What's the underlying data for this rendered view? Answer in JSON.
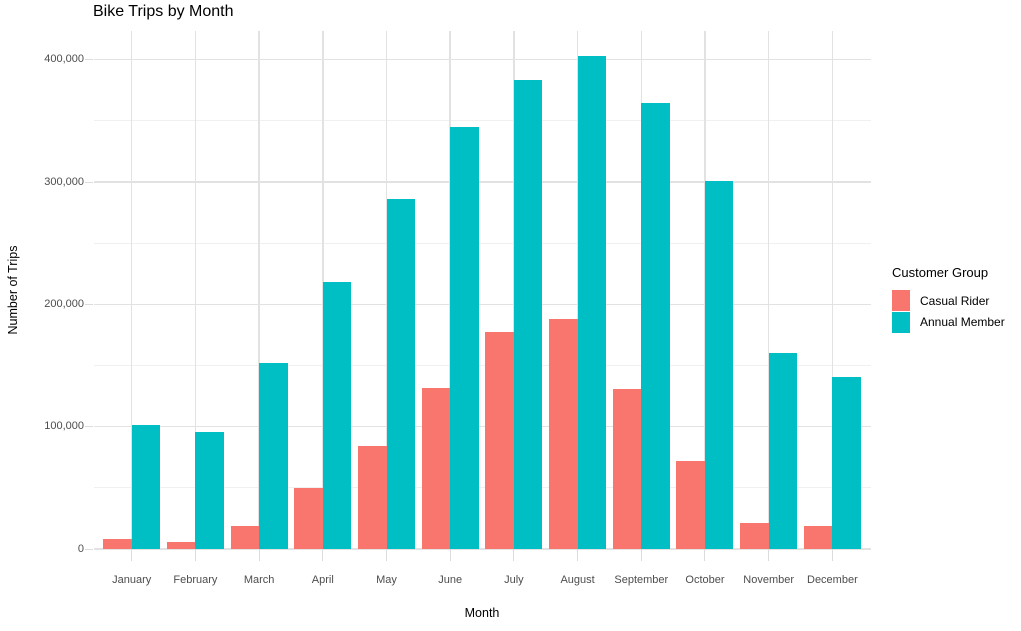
{
  "chart_data": {
    "type": "bar",
    "grouping": "dodged",
    "title": "Bike Trips by Month",
    "xlabel": "Month",
    "ylabel": "Number of Trips",
    "legend_title": "Customer Group",
    "legend_position": "right",
    "grid": true,
    "categories": [
      "January",
      "February",
      "March",
      "April",
      "May",
      "June",
      "July",
      "August",
      "September",
      "October",
      "November",
      "December"
    ],
    "series": [
      {
        "name": "Casual Rider",
        "color": "#F8766D",
        "values": [
          8000,
          5500,
          19000,
          50000,
          84000,
          132000,
          177000,
          188000,
          131000,
          72000,
          21000,
          18500
        ]
      },
      {
        "name": "Annual Member",
        "color": "#00BFC4",
        "values": [
          101000,
          96000,
          152000,
          218000,
          286000,
          345000,
          383000,
          403000,
          365000,
          301000,
          160000,
          141000
        ]
      }
    ],
    "ylim": [
      0,
      420000
    ],
    "yticks": [
      0,
      100000,
      200000,
      300000,
      400000
    ],
    "ytick_labels": [
      "0",
      "100,000",
      "200,000",
      "300,000",
      "400,000"
    ],
    "yticks_minor": [
      50000,
      150000,
      250000,
      350000
    ]
  }
}
